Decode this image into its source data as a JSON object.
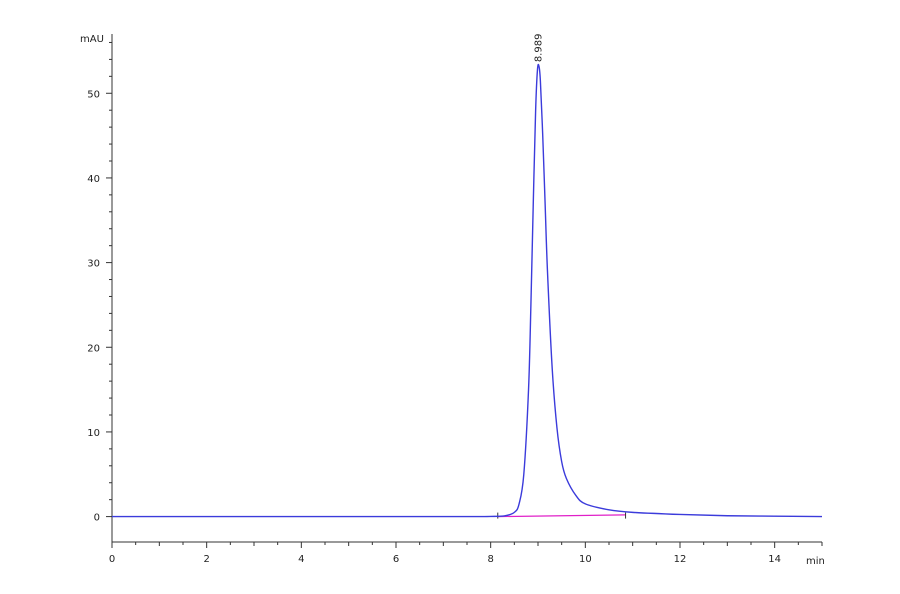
{
  "chart_data": {
    "type": "line",
    "title": "",
    "xlabel": "min",
    "ylabel": "mAU",
    "xlim": [
      0,
      15
    ],
    "ylim": [
      -3,
      57
    ],
    "x_ticks": [
      0,
      2,
      4,
      6,
      8,
      10,
      12,
      14
    ],
    "x_tick_labels": [
      "0",
      "2",
      "4",
      "6",
      "8",
      "10",
      "12",
      "14"
    ],
    "y_ticks": [
      0,
      10,
      20,
      30,
      40,
      50
    ],
    "y_tick_labels": [
      "0",
      "10",
      "20",
      "30",
      "40",
      "50"
    ],
    "grid": false,
    "series": [
      {
        "color": "#3b3bdb",
        "points": [
          [
            0,
            0
          ],
          [
            2,
            0
          ],
          [
            4,
            0
          ],
          [
            6,
            0
          ],
          [
            7.5,
            0
          ],
          [
            8.0,
            0.02
          ],
          [
            8.3,
            0.1
          ],
          [
            8.5,
            0.5
          ],
          [
            8.6,
            1.5
          ],
          [
            8.7,
            5
          ],
          [
            8.8,
            15
          ],
          [
            8.85,
            25
          ],
          [
            8.9,
            37
          ],
          [
            8.95,
            48
          ],
          [
            8.989,
            52.8
          ],
          [
            9.02,
            53.2
          ],
          [
            9.05,
            51.5
          ],
          [
            9.1,
            45
          ],
          [
            9.15,
            37
          ],
          [
            9.2,
            29
          ],
          [
            9.3,
            17.5
          ],
          [
            9.4,
            10.5
          ],
          [
            9.5,
            6.5
          ],
          [
            9.6,
            4.5
          ],
          [
            9.8,
            2.5
          ],
          [
            10.0,
            1.5
          ],
          [
            10.5,
            0.8
          ],
          [
            11,
            0.5
          ],
          [
            12,
            0.25
          ],
          [
            13,
            0.1
          ],
          [
            14,
            0.05
          ],
          [
            15,
            0
          ]
        ]
      }
    ],
    "baseline": {
      "color": "#e020c8",
      "x": [
        8.15,
        10.85
      ],
      "y": [
        0,
        0.2
      ]
    },
    "annotations": [
      {
        "text": "8.989",
        "x": 8.989,
        "y": 53.2
      }
    ],
    "baseline_markers": [
      {
        "x": 8.15
      },
      {
        "x": 10.85
      }
    ]
  }
}
